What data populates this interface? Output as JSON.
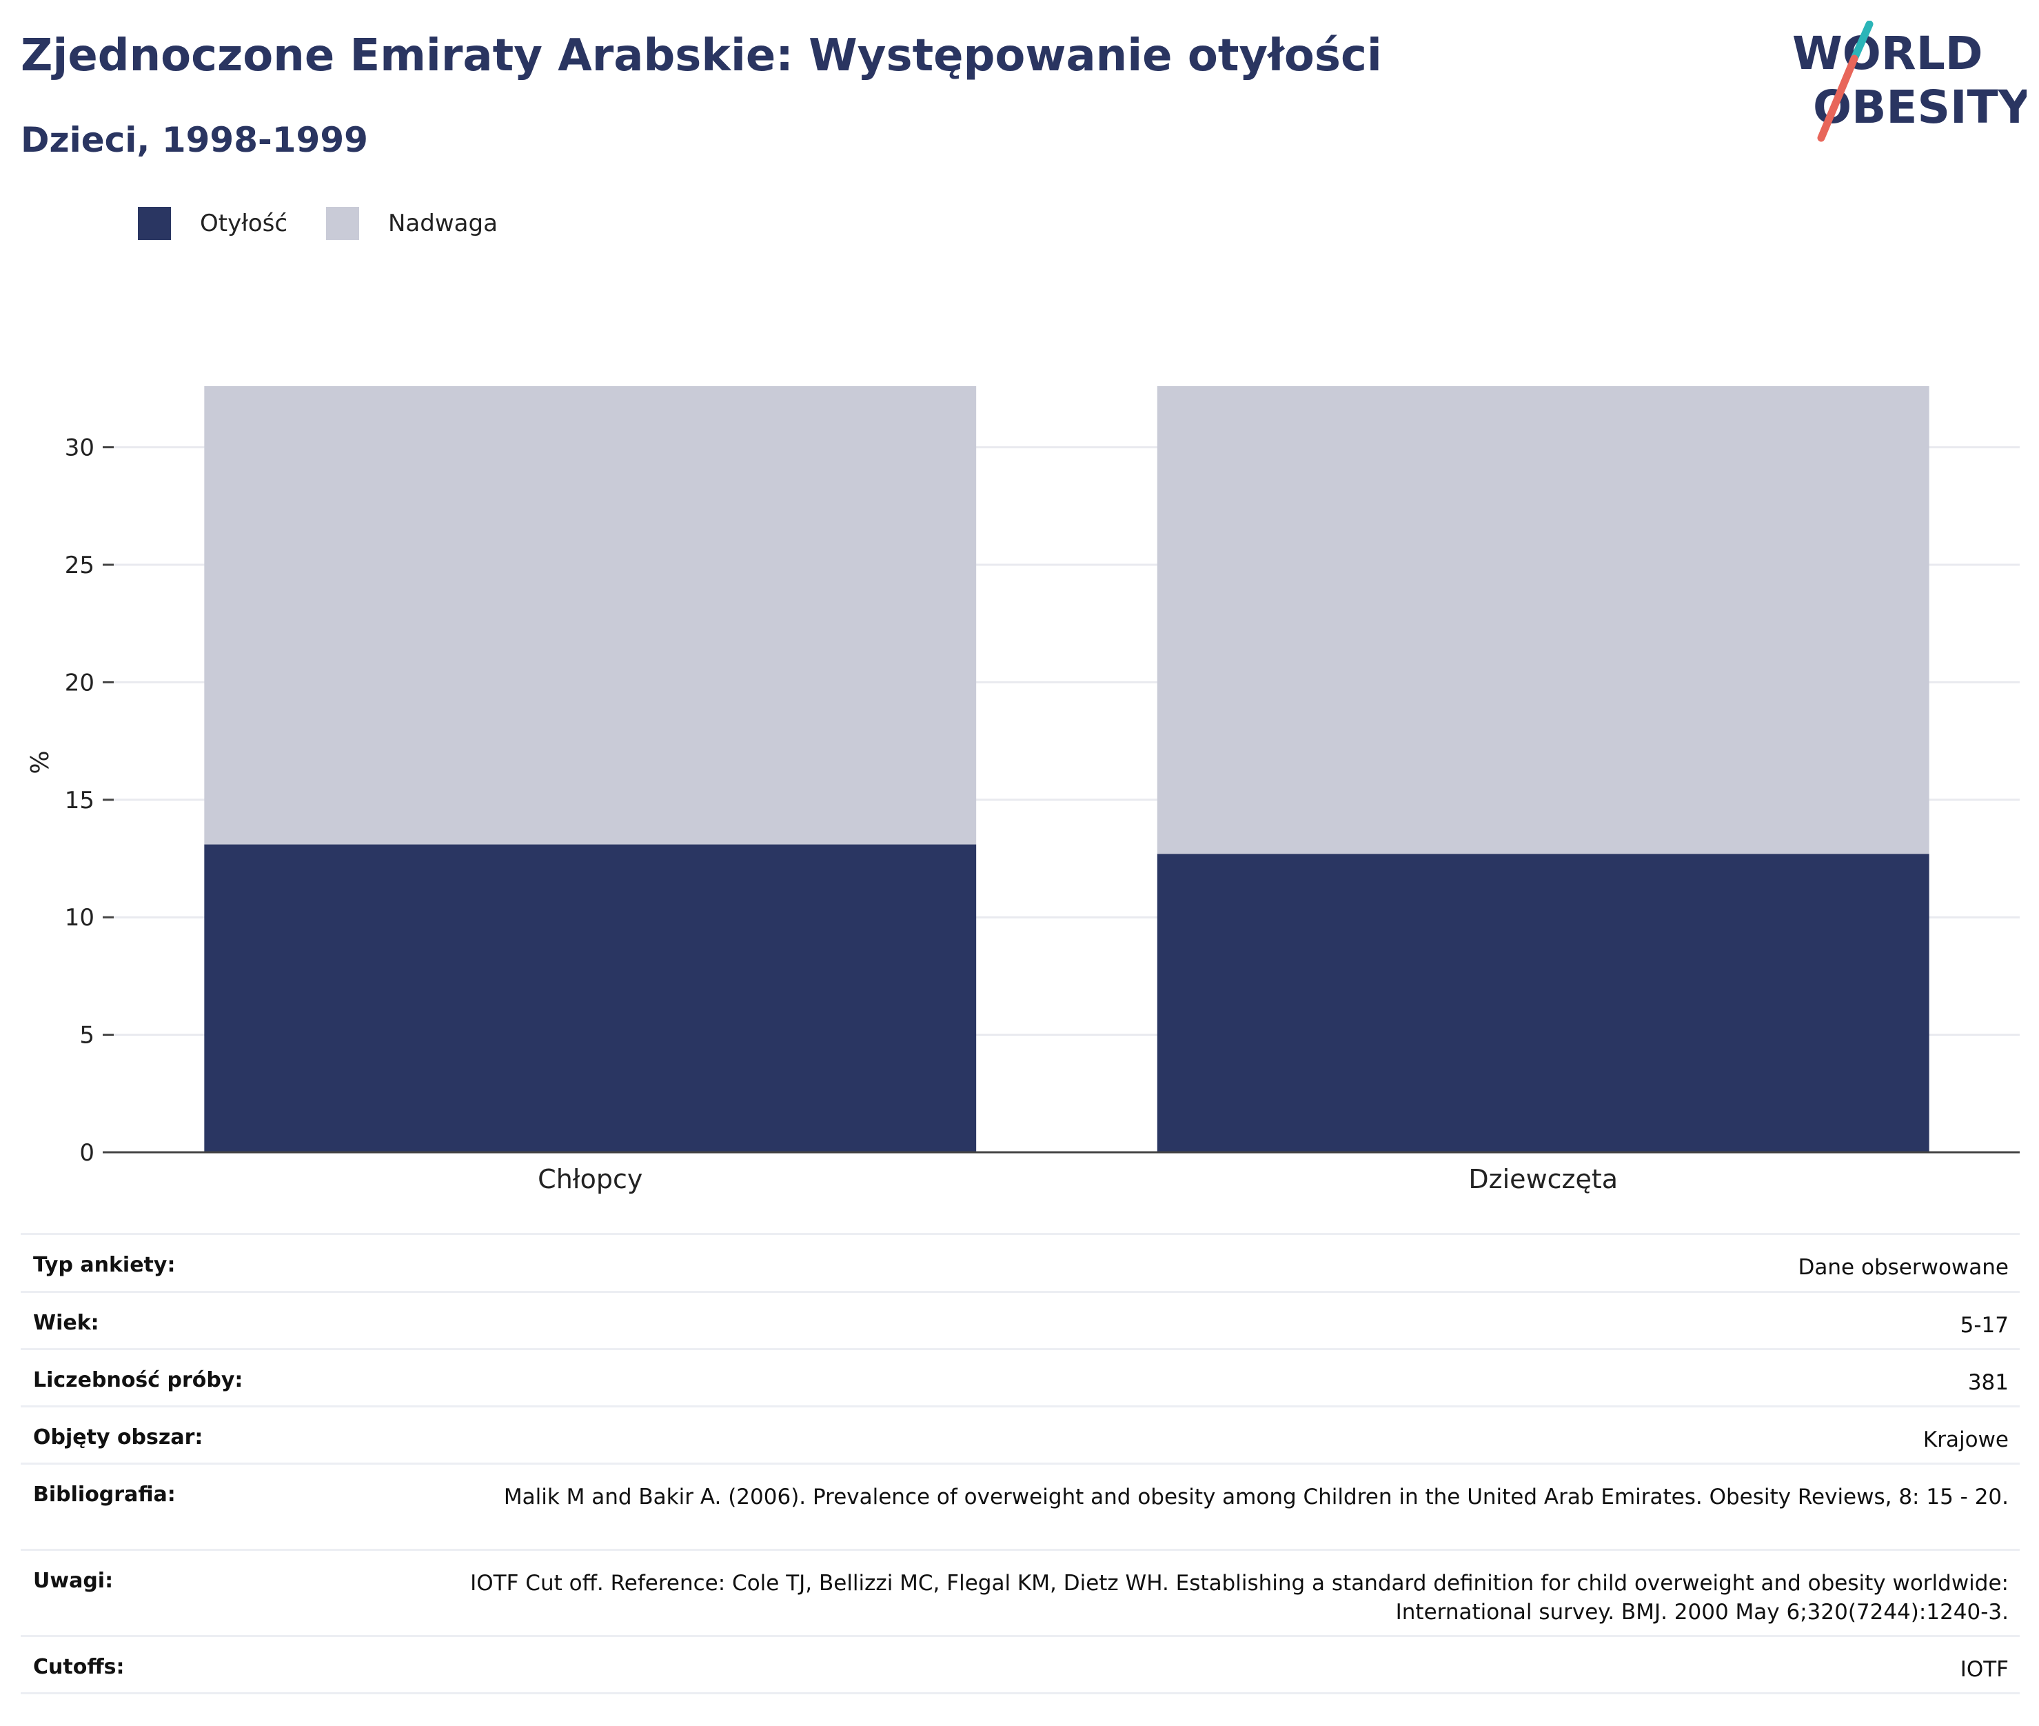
{
  "header": {
    "title": "Zjednoczone Emiraty Arabskie: Występowanie otyłości",
    "subtitle": "Dzieci, 1998-1999"
  },
  "logo": {
    "line1": "WORLD",
    "line2": "OBESITY",
    "colors": {
      "text": "#2a3561",
      "slash_top": "#2bb5b8",
      "slash_bottom": "#e8665a"
    }
  },
  "legend": [
    {
      "label": "Otyłość",
      "color": "#2a3662"
    },
    {
      "label": "Nadwaga",
      "color": "#c9cbd7"
    }
  ],
  "chart_data": {
    "type": "bar",
    "stacked": true,
    "categories": [
      "Chłopcy",
      "Dziewczęta"
    ],
    "series": [
      {
        "name": "Otyłość",
        "color": "#2a3662",
        "values": [
          13.1,
          12.7
        ]
      },
      {
        "name": "Nadwaga",
        "color": "#c9cbd7",
        "values": [
          19.5,
          19.9
        ]
      }
    ],
    "ylabel": "%",
    "ylim": [
      0,
      32.6
    ],
    "yticks": [
      0,
      5,
      10,
      15,
      20,
      25,
      30
    ],
    "grid": true
  },
  "meta": [
    {
      "key": "Typ ankiety:",
      "value": "Dane obserwowane"
    },
    {
      "key": "Wiek:",
      "value": "5-17"
    },
    {
      "key": "Liczebność próby:",
      "value": "381"
    },
    {
      "key": "Objęty obszar:",
      "value": "Krajowe"
    },
    {
      "key": "Bibliografia:",
      "value": "Malik M and Bakir A. (2006). Prevalence of overweight and obesity among Children in the United Arab Emirates. Obesity Reviews, 8: 15 - 20."
    },
    {
      "key": "Uwagi:",
      "value": "IOTF Cut off. Reference: Cole TJ, Bellizzi MC, Flegal KM, Dietz WH. Establishing a standard definition for child overweight and obesity worldwide: International survey. BMJ. 2000 May 6;320(7244):1240-3."
    },
    {
      "key": "Cutoffs:",
      "value": "IOTF"
    }
  ]
}
